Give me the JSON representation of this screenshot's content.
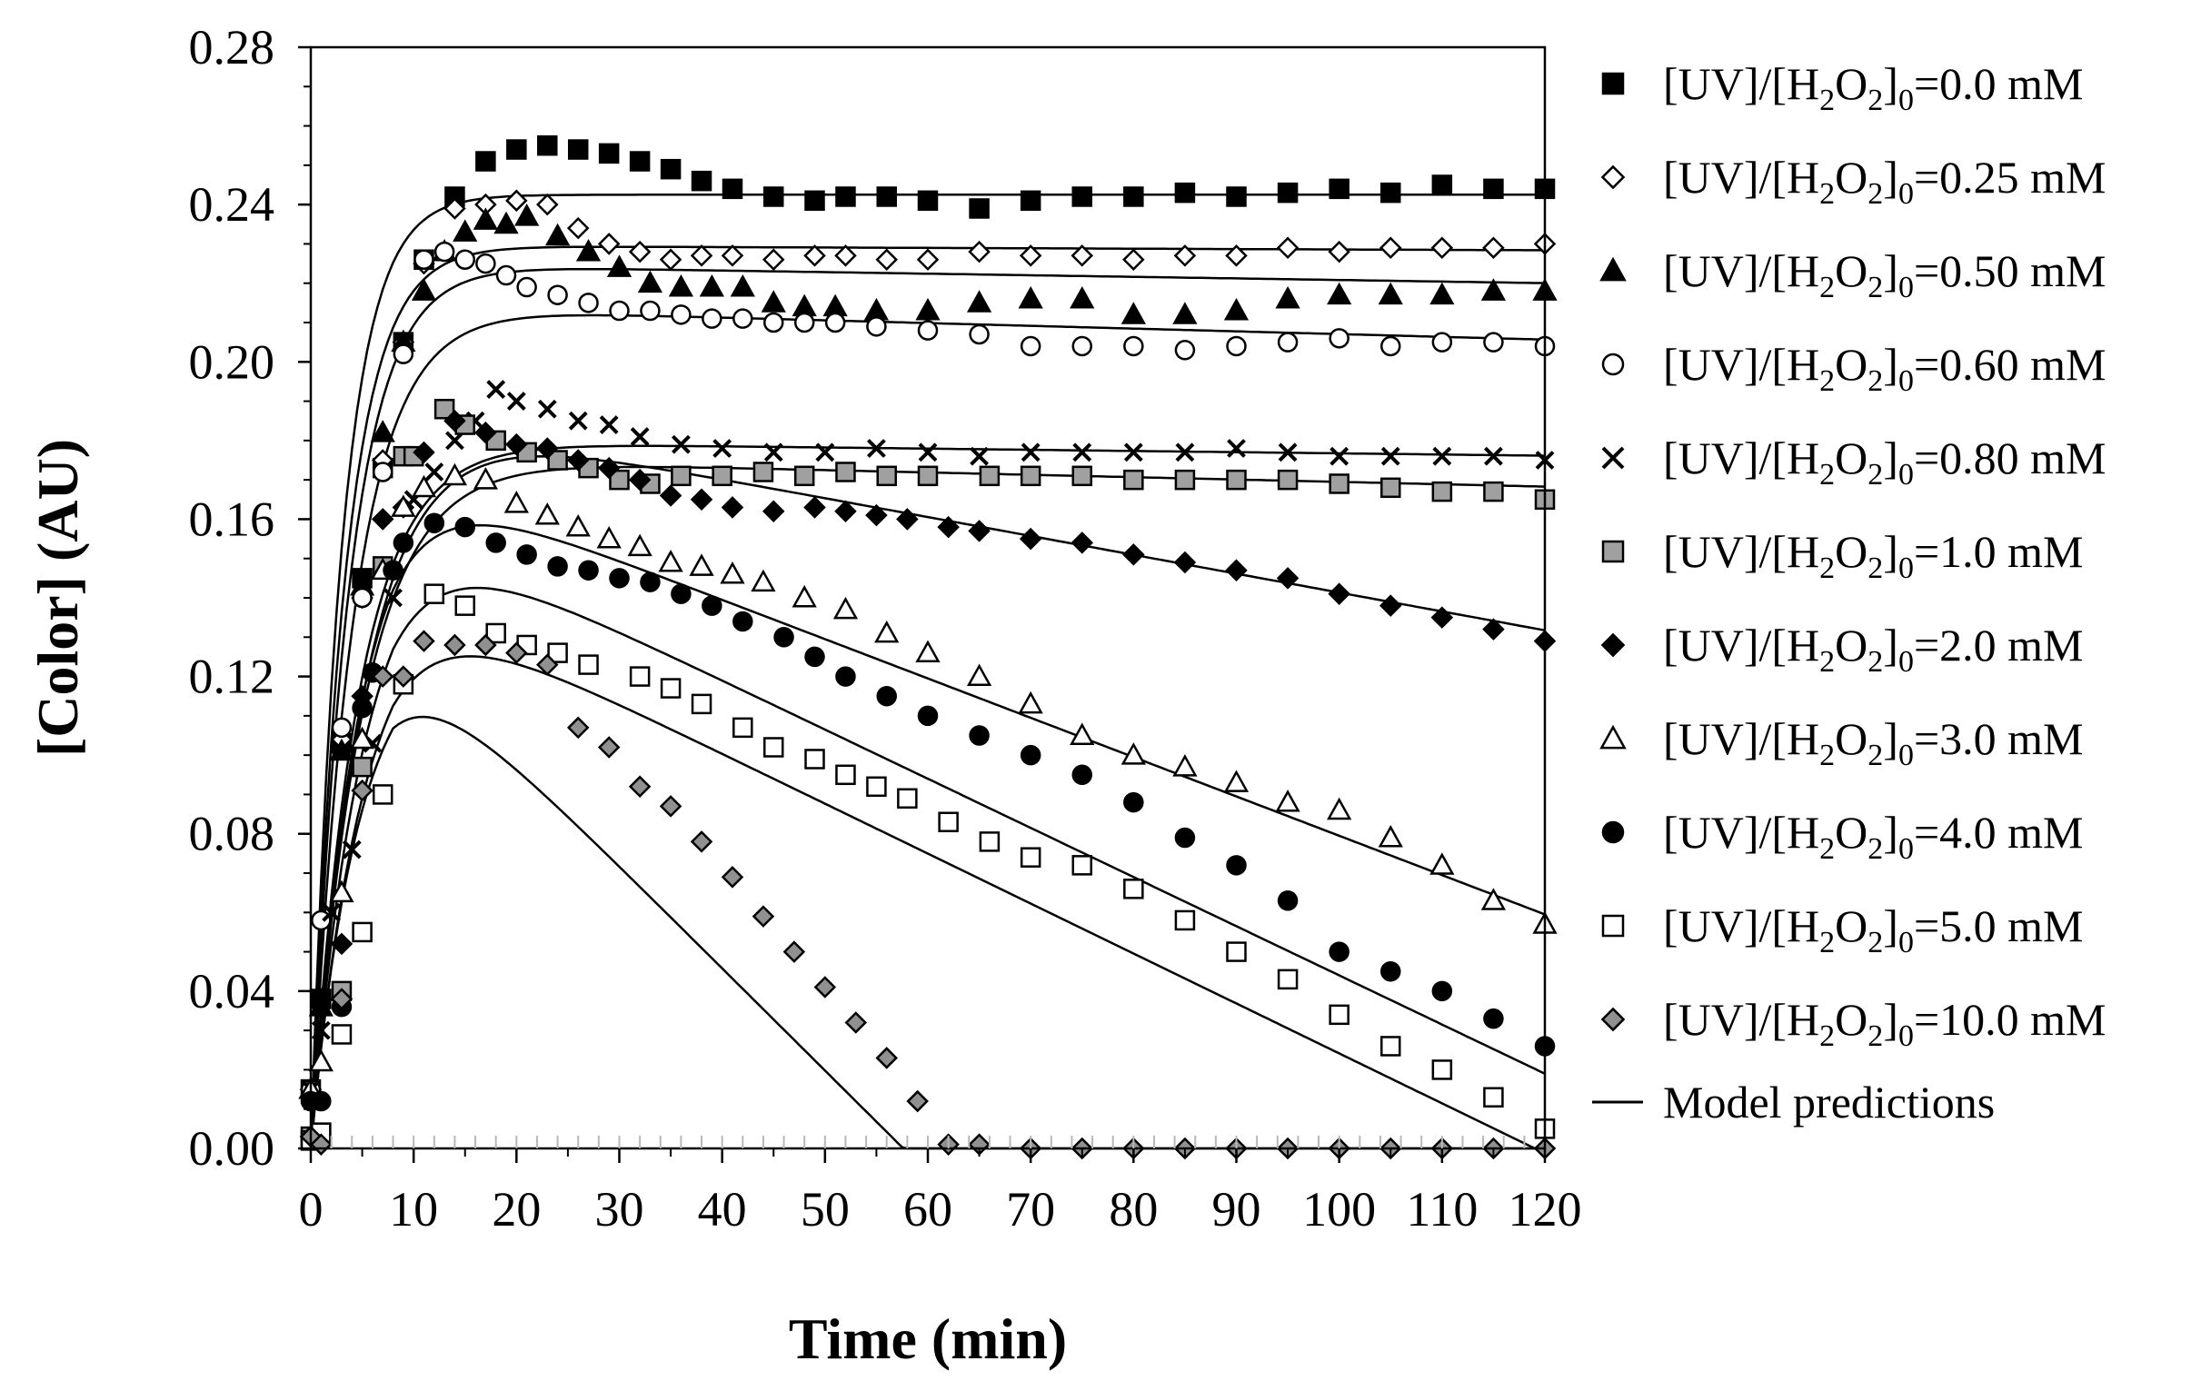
{
  "chart_data": {
    "type": "scatter",
    "title": "",
    "xlabel": "Time (min)",
    "ylabel": "[Color] (AU)",
    "xlim": [
      0,
      120
    ],
    "ylim": [
      0,
      0.28
    ],
    "xticks": [
      0,
      10,
      20,
      30,
      40,
      50,
      60,
      70,
      80,
      90,
      100,
      110,
      120
    ],
    "yticks": [
      0.0,
      0.04,
      0.08,
      0.12,
      0.16,
      0.2,
      0.24,
      0.28
    ],
    "ytick_labels": [
      "0.00",
      "0.04",
      "0.08",
      "0.12",
      "0.16",
      "0.20",
      "0.24",
      "0.28"
    ],
    "xtick_labels": [
      "0",
      "10",
      "20",
      "30",
      "40",
      "50",
      "60",
      "70",
      "80",
      "90",
      "100",
      "110",
      "120"
    ],
    "legend_position": "right",
    "legend_prefix_label": "[UV]/[H",
    "legend_sub_a": "2",
    "legend_mid": "O",
    "legend_sub_b": "2",
    "legend_close": "]",
    "legend_sub_c": "0",
    "model_label": "Model predictions",
    "series": [
      {
        "name": "[UV]/[H2O2]0=0.0 mM",
        "value_label": "=0.0 mM",
        "marker": "square",
        "fill": "#000000",
        "x": [
          0,
          1,
          3,
          5,
          7,
          9,
          11,
          14,
          17,
          20,
          23,
          26,
          29,
          32,
          35,
          38,
          41,
          45,
          49,
          52,
          56,
          60,
          65,
          70,
          75,
          80,
          85,
          90,
          95,
          100,
          105,
          110,
          115,
          120
        ],
        "y": [
          0.015,
          0.038,
          0.103,
          0.145,
          0.173,
          0.205,
          0.226,
          0.242,
          0.251,
          0.254,
          0.255,
          0.254,
          0.253,
          0.251,
          0.249,
          0.246,
          0.244,
          0.242,
          0.241,
          0.242,
          0.242,
          0.241,
          0.239,
          0.241,
          0.242,
          0.242,
          0.243,
          0.242,
          0.243,
          0.244,
          0.243,
          0.245,
          0.244,
          0.244
        ],
        "model": {
          "plateau": 0.2425,
          "k": 0.33,
          "slope": 0.0
        }
      },
      {
        "name": "[UV]/[H2O2]0=0.25 mM",
        "value_label": "=0.25 mM",
        "marker": "diamond",
        "fill": "#ffffff",
        "x": [
          0,
          1,
          3,
          5,
          7,
          9,
          11,
          14,
          17,
          20,
          23,
          26,
          29,
          32,
          35,
          38,
          41,
          45,
          49,
          52,
          56,
          60,
          65,
          70,
          75,
          80,
          85,
          90,
          95,
          100,
          105,
          110,
          115,
          120
        ],
        "y": [
          0.015,
          0.038,
          0.104,
          0.14,
          0.175,
          0.205,
          0.225,
          0.239,
          0.24,
          0.241,
          0.24,
          0.234,
          0.23,
          0.228,
          0.226,
          0.227,
          0.227,
          0.226,
          0.227,
          0.227,
          0.226,
          0.226,
          0.228,
          0.227,
          0.227,
          0.226,
          0.227,
          0.227,
          0.229,
          0.228,
          0.229,
          0.229,
          0.229,
          0.23
        ],
        "model": {
          "plateau": 0.2295,
          "k": 0.3,
          "slope": -1e-05
        }
      },
      {
        "name": "[UV]/[H2O2]0=0.50 mM",
        "value_label": "=0.50 mM",
        "marker": "triangle",
        "fill": "#000000",
        "x": [
          0,
          1,
          3,
          5,
          7,
          9,
          11,
          13,
          15,
          17,
          19,
          21,
          24,
          27,
          30,
          33,
          36,
          39,
          42,
          45,
          48,
          51,
          55,
          60,
          65,
          70,
          75,
          80,
          85,
          90,
          95,
          100,
          105,
          110,
          115,
          120
        ],
        "y": [
          0.015,
          0.036,
          0.101,
          0.143,
          0.182,
          0.205,
          0.218,
          0.228,
          0.233,
          0.236,
          0.235,
          0.237,
          0.232,
          0.228,
          0.224,
          0.22,
          0.219,
          0.219,
          0.219,
          0.215,
          0.214,
          0.214,
          0.213,
          0.213,
          0.215,
          0.216,
          0.216,
          0.212,
          0.212,
          0.213,
          0.216,
          0.217,
          0.217,
          0.217,
          0.218,
          0.218
        ],
        "model": {
          "plateau": 0.2245,
          "k": 0.27,
          "slope": -4e-05
        }
      },
      {
        "name": "[UV]/[H2O2]0=0.60 mM",
        "value_label": "=0.60 mM",
        "marker": "circle",
        "fill": "#ffffff",
        "x": [
          0,
          1,
          3,
          5,
          7,
          9,
          11,
          13,
          15,
          17,
          19,
          21,
          24,
          27,
          30,
          33,
          36,
          39,
          42,
          45,
          48,
          51,
          55,
          60,
          65,
          70,
          75,
          80,
          85,
          90,
          95,
          100,
          105,
          110,
          115,
          120
        ],
        "y": [
          0.015,
          0.058,
          0.107,
          0.14,
          0.172,
          0.202,
          0.226,
          0.228,
          0.226,
          0.225,
          0.222,
          0.219,
          0.217,
          0.215,
          0.213,
          0.213,
          0.212,
          0.211,
          0.211,
          0.21,
          0.21,
          0.21,
          0.209,
          0.208,
          0.207,
          0.204,
          0.204,
          0.204,
          0.203,
          0.204,
          0.205,
          0.206,
          0.204,
          0.205,
          0.205,
          0.204
        ],
        "model": {
          "plateau": 0.2135,
          "k": 0.24,
          "slope": -7e-05
        }
      },
      {
        "name": "[UV]/[H2O2]0=0.80 mM",
        "value_label": "=0.80 mM",
        "marker": "cross",
        "fill": "#000000",
        "x": [
          0,
          1,
          2,
          4,
          6,
          8,
          10,
          12,
          14,
          16,
          18,
          20,
          23,
          26,
          29,
          32,
          36,
          40,
          45,
          50,
          55,
          60,
          65,
          70,
          75,
          80,
          85,
          90,
          95,
          100,
          105,
          110,
          115,
          120
        ],
        "y": [
          0.015,
          0.03,
          0.06,
          0.076,
          0.103,
          0.14,
          0.165,
          0.172,
          0.18,
          0.185,
          0.193,
          0.19,
          0.188,
          0.185,
          0.184,
          0.181,
          0.179,
          0.178,
          0.177,
          0.177,
          0.178,
          0.177,
          0.176,
          0.177,
          0.177,
          0.177,
          0.177,
          0.178,
          0.177,
          0.176,
          0.176,
          0.176,
          0.176,
          0.175
        ],
        "model": {
          "plateau": 0.1795,
          "k": 0.22,
          "slope": -3e-05
        }
      },
      {
        "name": "[UV]/[H2O2]0=1.0 mM",
        "value_label": "=1.0 mM",
        "marker": "square",
        "fill": "#a0a0a0",
        "x": [
          0,
          1,
          3,
          5,
          7,
          9,
          10,
          13,
          15,
          18,
          21,
          24,
          27,
          30,
          33,
          36,
          40,
          44,
          48,
          52,
          56,
          60,
          66,
          70,
          75,
          80,
          85,
          90,
          95,
          100,
          105,
          110,
          115,
          120
        ],
        "y": [
          0.003,
          0.004,
          0.04,
          0.097,
          0.148,
          0.176,
          0.176,
          0.188,
          0.184,
          0.18,
          0.177,
          0.175,
          0.173,
          0.17,
          0.169,
          0.171,
          0.171,
          0.172,
          0.171,
          0.172,
          0.171,
          0.171,
          0.171,
          0.171,
          0.171,
          0.17,
          0.17,
          0.17,
          0.17,
          0.169,
          0.168,
          0.167,
          0.167,
          0.165
        ],
        "model": {
          "plateau": 0.175,
          "k": 0.2,
          "slope": -6e-05
        }
      },
      {
        "name": "[UV]/[H2O2]0=2.0 mM",
        "value_label": "=2.0 mM",
        "marker": "diamond",
        "fill": "#000000",
        "x": [
          0,
          1,
          3,
          5,
          7,
          9,
          11,
          14,
          17,
          20,
          23,
          26,
          29,
          32,
          35,
          38,
          41,
          45,
          49,
          52,
          55,
          58,
          62,
          65,
          70,
          75,
          80,
          85,
          90,
          95,
          100,
          105,
          110,
          115,
          120
        ],
        "y": [
          0.003,
          0.038,
          0.052,
          0.115,
          0.16,
          0.163,
          0.177,
          0.185,
          0.182,
          0.179,
          0.178,
          0.175,
          0.173,
          0.17,
          0.166,
          0.165,
          0.163,
          0.162,
          0.163,
          0.162,
          0.161,
          0.16,
          0.158,
          0.157,
          0.155,
          0.154,
          0.151,
          0.149,
          0.147,
          0.145,
          0.141,
          0.138,
          0.135,
          0.132,
          0.129
        ],
        "model": {
          "plateau": 0.1855,
          "k": 0.19,
          "slope": -0.00048
        }
      },
      {
        "name": "[UV]/[H2O2]0=3.0 mM",
        "value_label": "=3.0 mM",
        "marker": "triangle",
        "fill": "#ffffff",
        "x": [
          0,
          1,
          3,
          5,
          7,
          9,
          11,
          14,
          17,
          20,
          23,
          26,
          29,
          32,
          35,
          38,
          41,
          44,
          48,
          52,
          56,
          60,
          65,
          70,
          75,
          80,
          85,
          90,
          95,
          100,
          105,
          110,
          115,
          120
        ],
        "y": [
          0.015,
          0.022,
          0.065,
          0.104,
          0.147,
          0.163,
          0.168,
          0.171,
          0.17,
          0.164,
          0.161,
          0.158,
          0.155,
          0.153,
          0.149,
          0.148,
          0.146,
          0.144,
          0.14,
          0.137,
          0.131,
          0.126,
          0.12,
          0.113,
          0.105,
          0.1,
          0.097,
          0.093,
          0.088,
          0.086,
          0.079,
          0.072,
          0.063,
          0.057
        ],
        "model": {
          "plateau": 0.1715,
          "k": 0.22,
          "slope": -0.001
        }
      },
      {
        "name": "[UV]/[H2O2]0=4.0 mM",
        "value_label": "=4.0 mM",
        "marker": "circle",
        "fill": "#000000",
        "x": [
          0,
          1,
          3,
          5,
          6,
          8,
          9,
          12,
          15,
          18,
          21,
          24,
          27,
          30,
          33,
          36,
          39,
          42,
          46,
          49,
          52,
          56,
          60,
          65,
          70,
          75,
          80,
          85,
          90,
          95,
          100,
          105,
          110,
          115,
          120
        ],
        "y": [
          0.012,
          0.012,
          0.036,
          0.112,
          0.121,
          0.147,
          0.154,
          0.159,
          0.158,
          0.154,
          0.151,
          0.148,
          0.147,
          0.145,
          0.144,
          0.141,
          0.138,
          0.134,
          0.13,
          0.125,
          0.12,
          0.115,
          0.11,
          0.105,
          0.1,
          0.095,
          0.088,
          0.079,
          0.072,
          0.063,
          0.05,
          0.045,
          0.04,
          0.033,
          0.026
        ],
        "model": {
          "plateau": 0.159,
          "k": 0.2,
          "slope": -0.00125
        }
      },
      {
        "name": "[UV]/[H2O2]0=5.0 mM",
        "value_label": "=5.0 mM",
        "marker": "square",
        "fill": "#ffffff",
        "x": [
          0,
          1,
          3,
          5,
          7,
          9,
          12,
          15,
          18,
          21,
          24,
          27,
          32,
          35,
          38,
          42,
          45,
          49,
          52,
          55,
          58,
          62,
          66,
          70,
          75,
          80,
          85,
          90,
          95,
          100,
          105,
          110,
          115,
          120
        ],
        "y": [
          0.002,
          0.004,
          0.029,
          0.055,
          0.09,
          0.118,
          0.141,
          0.138,
          0.131,
          0.128,
          0.126,
          0.123,
          0.12,
          0.117,
          0.113,
          0.107,
          0.102,
          0.099,
          0.095,
          0.092,
          0.089,
          0.083,
          0.078,
          0.074,
          0.072,
          0.066,
          0.058,
          0.05,
          0.043,
          0.034,
          0.026,
          0.02,
          0.013,
          0.005
        ],
        "model": {
          "plateau": 0.141,
          "k": 0.2,
          "slope": -0.00127
        }
      },
      {
        "name": "[UV]/[H2O2]0=10.0 mM",
        "value_label": "=10.0 mM",
        "marker": "diamond",
        "fill": "#909090",
        "x": [
          0,
          1,
          3,
          5,
          7,
          9,
          11,
          14,
          17,
          20,
          23,
          26,
          29,
          32,
          35,
          38,
          41,
          44,
          47,
          50,
          53,
          56,
          59,
          62,
          65,
          70,
          75,
          80,
          85,
          90,
          95,
          100,
          105,
          110,
          115,
          120
        ],
        "y": [
          0.003,
          0.001,
          0.038,
          0.091,
          0.12,
          0.12,
          0.129,
          0.128,
          0.128,
          0.126,
          0.123,
          0.107,
          0.102,
          0.092,
          0.087,
          0.078,
          0.069,
          0.059,
          0.05,
          0.041,
          0.032,
          0.023,
          0.012,
          0.001,
          0.001,
          0.0,
          0.0,
          0.0,
          0.0,
          0.0,
          0.0,
          0.0,
          0.0,
          0.0,
          0.0,
          0.0
        ],
        "model": {
          "plateau": 0.129,
          "k": 0.22,
          "slope": -0.0026
        }
      }
    ]
  }
}
